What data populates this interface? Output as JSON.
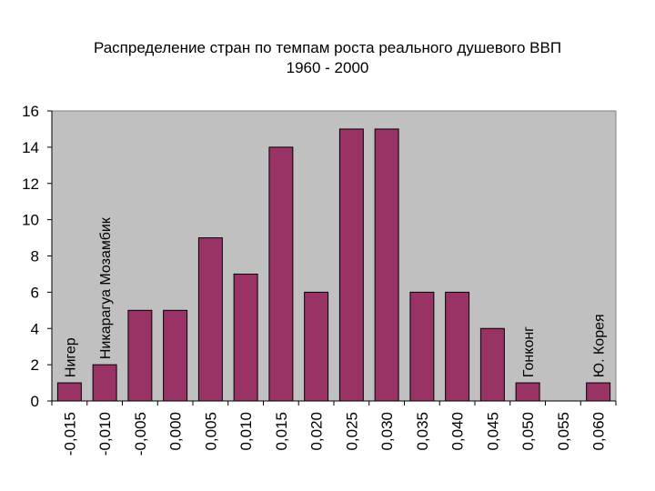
{
  "chart_data": {
    "type": "bar",
    "title": "Распределение стран по темпам роста реального душевого ВВП",
    "subtitle": "1960 - 2000",
    "categories": [
      "-0,015",
      "-0,010",
      "-0,005",
      "0,000",
      "0,005",
      "0,010",
      "0,015",
      "0,020",
      "0,025",
      "0,030",
      "0,035",
      "0,040",
      "0,045",
      "0,050",
      "0,055",
      "0,060"
    ],
    "values": [
      1,
      2,
      5,
      5,
      9,
      7,
      14,
      6,
      15,
      15,
      6,
      6,
      4,
      1,
      0,
      1
    ],
    "ylim": [
      0,
      16
    ],
    "yticks": [
      "0",
      "2",
      "4",
      "6",
      "8",
      "10",
      "12",
      "14",
      "16"
    ],
    "grid": false,
    "colors": {
      "bar": "#993366",
      "plot_bg": "#c0c0c0"
    },
    "annotations": [
      {
        "category_index": 0,
        "text": "Нигер"
      },
      {
        "category_index": 1,
        "text": "Никарагуа Мозамбик"
      },
      {
        "category_index": 13,
        "text": "Гонконг"
      },
      {
        "category_index": 15,
        "text": "Ю. Корея"
      }
    ]
  }
}
